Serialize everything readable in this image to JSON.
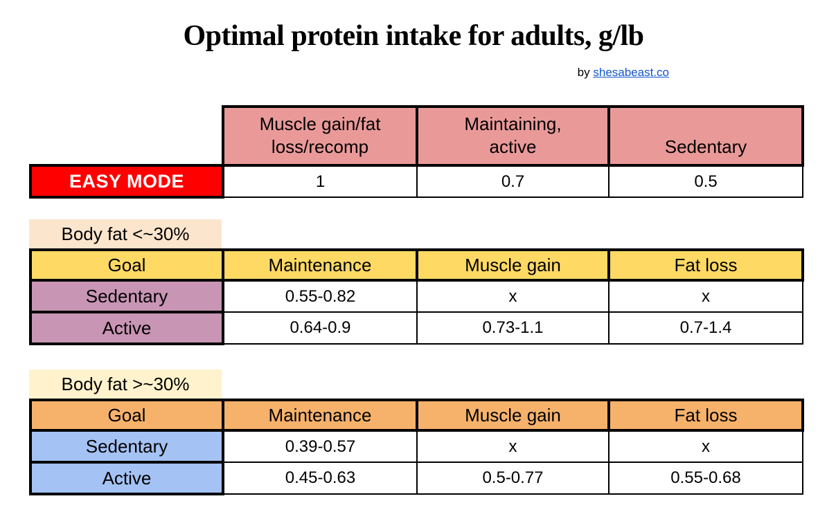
{
  "header": {
    "title": "Optimal protein intake for adults, g/lb",
    "byline_prefix": "by",
    "byline_link_text": "shesabeast.co"
  },
  "colors": {
    "easy_header_pink": "#ea9999",
    "easy_mode_red": "#fe0000",
    "low_bf_label_peach": "#fce5cd",
    "low_bf_header_yellow": "#fed964",
    "low_bf_row_mauve": "#c995b4",
    "high_bf_label_cream": "#fff2cc",
    "high_bf_header_orange": "#f6b26b",
    "high_bf_row_blue": "#a4c2f4",
    "link_blue": "#1155cc",
    "border_black": "#000000"
  },
  "chart_data": {
    "type": "table",
    "tables": [
      {
        "name": "easy_mode",
        "columns": [
          "Muscle gain/fat\nloss/recomp",
          "Maintaining,\nactive",
          "Sedentary"
        ],
        "rows": [
          {
            "label": "EASY MODE",
            "values": [
              "1",
              "0.7",
              "0.5"
            ]
          }
        ]
      },
      {
        "name": "body_fat_under_30",
        "label": "Body fat <~30%",
        "columns": [
          "Goal",
          "Maintenance",
          "Muscle gain",
          "Fat loss"
        ],
        "rows": [
          {
            "label": "Sedentary",
            "values": [
              "0.55-0.82",
              "x",
              "x"
            ]
          },
          {
            "label": "Active",
            "values": [
              "0.64-0.9",
              "0.73-1.1",
              "0.7-1.4"
            ]
          }
        ]
      },
      {
        "name": "body_fat_over_30",
        "label": "Body fat >~30%",
        "columns": [
          "Goal",
          "Maintenance",
          "Muscle gain",
          "Fat loss"
        ],
        "rows": [
          {
            "label": "Sedentary",
            "values": [
              "0.39-0.57",
              "x",
              "x"
            ]
          },
          {
            "label": "Active",
            "values": [
              "0.45-0.63",
              "0.5-0.77",
              "0.55-0.68"
            ]
          }
        ]
      }
    ]
  }
}
